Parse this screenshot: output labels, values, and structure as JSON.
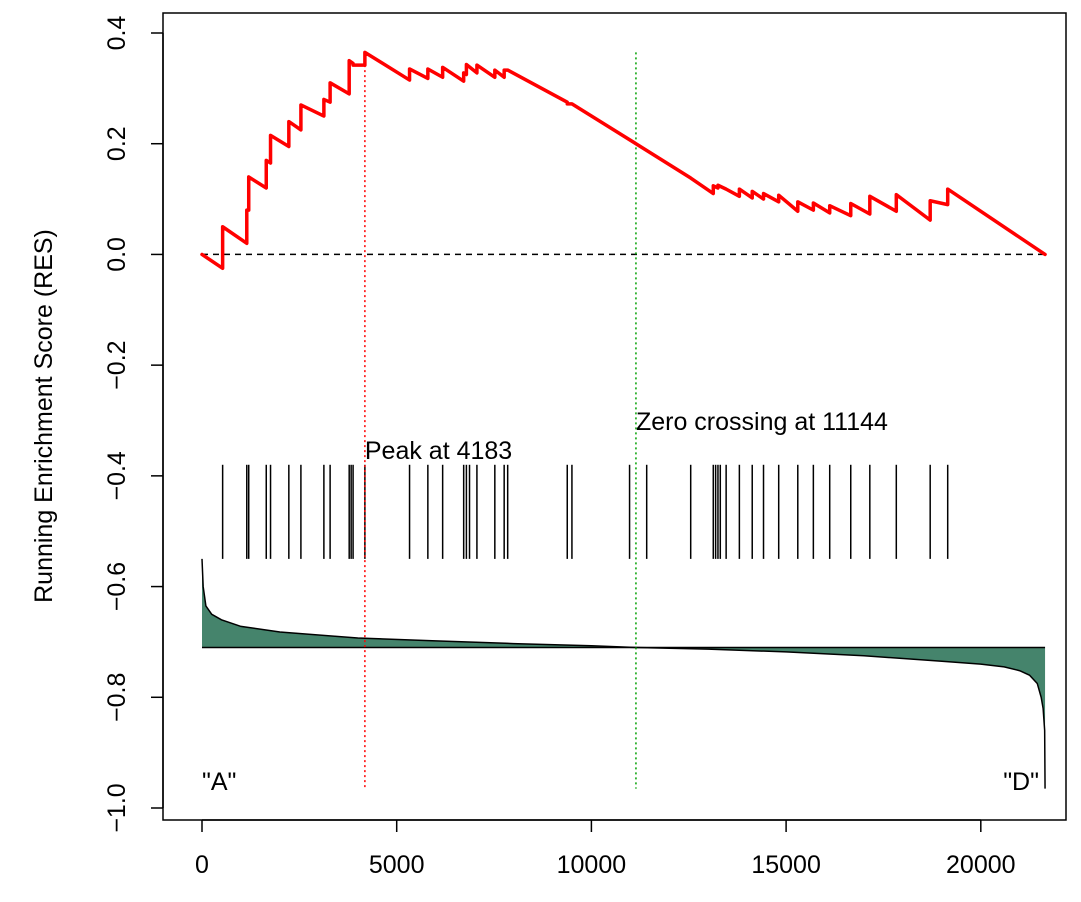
{
  "chart_data": {
    "type": "line",
    "title": "",
    "xlabel": "",
    "ylabel": "Running Enrichment Score (RES)",
    "xlim": [
      0,
      21700
    ],
    "ylim": [
      -1.0,
      0.4
    ],
    "x_ticks": [
      0,
      5000,
      10000,
      15000,
      20000
    ],
    "x_tick_labels": [
      "0",
      "5000",
      "10000",
      "15000",
      "20000"
    ],
    "y_ticks": [
      -1.0,
      -0.8,
      -0.6,
      -0.4,
      -0.2,
      0.0,
      0.2,
      0.4
    ],
    "y_tick_labels": [
      "−1.0",
      "−0.8",
      "−0.6",
      "−0.4",
      "−0.2",
      "0.0",
      "0.2",
      "0.4"
    ],
    "grid": false,
    "series": [
      {
        "color": "#ff0000",
        "x": [
          0,
          530,
          530,
          1150,
          1150,
          1200,
          1200,
          1650,
          1650,
          1760,
          1760,
          2230,
          2230,
          2540,
          2540,
          3130,
          3130,
          3290,
          3290,
          3780,
          3780,
          3880,
          3880,
          4183,
          4183,
          5330,
          5330,
          5800,
          5800,
          6180,
          6180,
          6720,
          6720,
          6790,
          6790,
          7060,
          7060,
          7520,
          7520,
          7760,
          7760,
          7850,
          7850,
          9380,
          9380,
          9500,
          9500,
          11144,
          12550,
          13130,
          13130,
          13250,
          13250,
          13460,
          13460,
          13800,
          13800,
          14130,
          14130,
          14420,
          14420,
          14810,
          14810,
          15300,
          15300,
          15700,
          15700,
          16120,
          16120,
          16660,
          16660,
          17150,
          17150,
          17830,
          17830,
          18700,
          18700,
          19150,
          19150,
          21650
        ],
        "y": [
          0.0,
          -0.025,
          0.05,
          0.02,
          0.08,
          0.08,
          0.14,
          0.12,
          0.17,
          0.165,
          0.215,
          0.195,
          0.24,
          0.225,
          0.27,
          0.25,
          0.28,
          0.275,
          0.31,
          0.29,
          0.35,
          0.345,
          0.342,
          0.342,
          0.365,
          0.315,
          0.335,
          0.318,
          0.335,
          0.32,
          0.338,
          0.313,
          0.328,
          0.325,
          0.343,
          0.328,
          0.342,
          0.32,
          0.333,
          0.32,
          0.333,
          0.333,
          0.333,
          0.275,
          0.272,
          0.272,
          0.272,
          0.2,
          0.138,
          0.11,
          0.124,
          0.12,
          0.125,
          0.118,
          0.118,
          0.105,
          0.118,
          0.102,
          0.114,
          0.1,
          0.11,
          0.095,
          0.107,
          0.078,
          0.095,
          0.08,
          0.093,
          0.075,
          0.088,
          0.07,
          0.092,
          0.073,
          0.105,
          0.078,
          0.108,
          0.062,
          0.097,
          0.09,
          0.118,
          0.0
        ]
      }
    ],
    "baseline_y": 0.0,
    "hits": [
      530,
      1150,
      1200,
      1650,
      1760,
      2230,
      2540,
      3130,
      3290,
      3780,
      3830,
      3880,
      4183,
      5330,
      5800,
      6180,
      6720,
      6790,
      6870,
      7060,
      7520,
      7760,
      7850,
      9380,
      9500,
      10980,
      11420,
      12550,
      13130,
      13190,
      13250,
      13310,
      13460,
      13800,
      14130,
      14420,
      14810,
      15300,
      15700,
      16120,
      16660,
      17150,
      17830,
      18700,
      19150
    ],
    "hit_y_range": [
      -0.38,
      -0.55
    ],
    "metric_ref_y": -0.71,
    "metric_x": [
      0,
      30,
      100,
      250,
      500,
      1000,
      2000,
      4000,
      6000,
      8000,
      10000,
      11144,
      13000,
      15000,
      17000,
      19000,
      20000,
      20600,
      21000,
      21250,
      21450,
      21550,
      21600,
      21640,
      21650
    ],
    "metric_y": [
      -0.55,
      -0.6,
      -0.635,
      -0.65,
      -0.66,
      -0.672,
      -0.682,
      -0.693,
      -0.698,
      -0.703,
      -0.707,
      -0.71,
      -0.713,
      -0.718,
      -0.725,
      -0.735,
      -0.74,
      -0.745,
      -0.752,
      -0.76,
      -0.775,
      -0.8,
      -0.82,
      -0.86,
      -0.965
    ],
    "metric_fill_color": "#45846c",
    "peak": {
      "x": 4183,
      "color": "#ff0000",
      "label": "Peak at 4183"
    },
    "zero_crossing": {
      "x": 11144,
      "color": "#00a000",
      "label": "Zero crossing at 11144"
    },
    "left_label": "\"A\"",
    "right_label": "\"D\""
  }
}
